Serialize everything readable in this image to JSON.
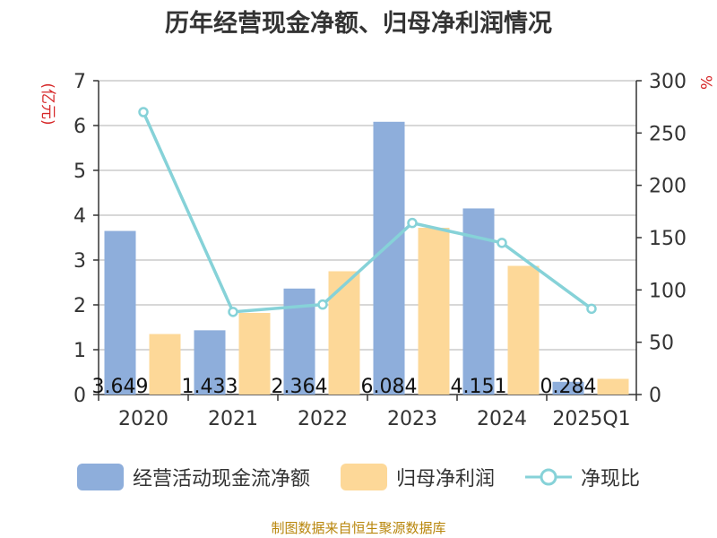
{
  "title": "历年经营现金净额、归母净利润情况",
  "source": "制图数据来自恒生聚源数据库",
  "colors": {
    "cash_flow": "#8eaedb",
    "net_profit": "#fdd898",
    "ratio": "#86d2d8"
  },
  "chart_data": {
    "type": "bar",
    "categories": [
      "2020",
      "2021",
      "2022",
      "2023",
      "2024",
      "2025Q1"
    ],
    "y_left": {
      "label": "(亿元)",
      "ylim": [
        0,
        7
      ],
      "ticks": [
        "0",
        "1",
        "2",
        "3",
        "4",
        "5",
        "6",
        "7"
      ]
    },
    "y_right": {
      "label": "%",
      "ylim": [
        0,
        300
      ],
      "ticks": [
        "0",
        "50",
        "100",
        "150",
        "200",
        "250",
        "300"
      ]
    },
    "series": [
      {
        "name": "经营活动现金流净额",
        "type": "bar",
        "axis": "left",
        "values": [
          3.649,
          1.433,
          2.364,
          6.084,
          4.151,
          0.284
        ],
        "labels": [
          "3.649",
          "1.433",
          "2.364",
          "6.084",
          "4.151",
          "0.284"
        ]
      },
      {
        "name": "归母净利润",
        "type": "bar",
        "axis": "left",
        "values": [
          1.35,
          1.82,
          2.75,
          3.72,
          2.87,
          0.35
        ]
      },
      {
        "name": "净现比",
        "type": "line",
        "axis": "right",
        "values": [
          270,
          79,
          86,
          164,
          145,
          82
        ]
      }
    ],
    "grid": true,
    "legend_position": "bottom"
  }
}
